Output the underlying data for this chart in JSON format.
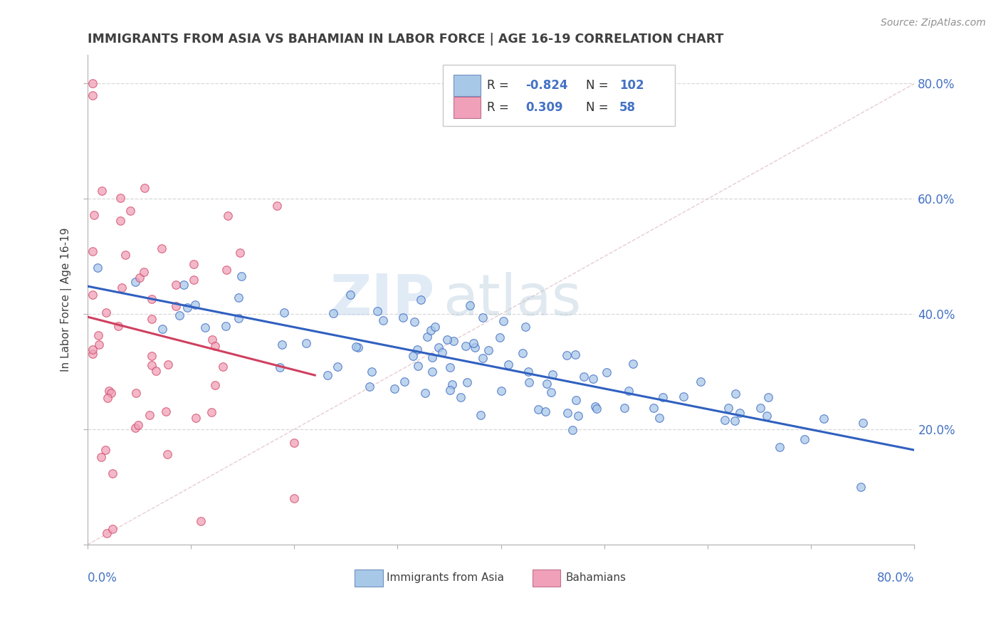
{
  "title": "IMMIGRANTS FROM ASIA VS BAHAMIAN IN LABOR FORCE | AGE 16-19 CORRELATION CHART",
  "source": "Source: ZipAtlas.com",
  "ylabel": "In Labor Force | Age 16-19",
  "legend_blue_label": "Immigrants from Asia",
  "legend_pink_label": "Bahamians",
  "legend_blue_r": "-0.824",
  "legend_blue_n": "102",
  "legend_pink_r": "0.309",
  "legend_pink_n": "58",
  "watermark_zip": "ZIP",
  "watermark_atlas": "atlas",
  "xlim": [
    0.0,
    0.8
  ],
  "ylim": [
    0.0,
    0.85
  ],
  "blue_color": "#a8c8e8",
  "pink_color": "#f0a0b8",
  "blue_line_color": "#3060c0",
  "pink_line_color": "#d04060",
  "bg_color": "#ffffff",
  "grid_color": "#d8d8d8",
  "title_color": "#404040",
  "axis_label_color": "#4472c4",
  "source_color": "#909090"
}
